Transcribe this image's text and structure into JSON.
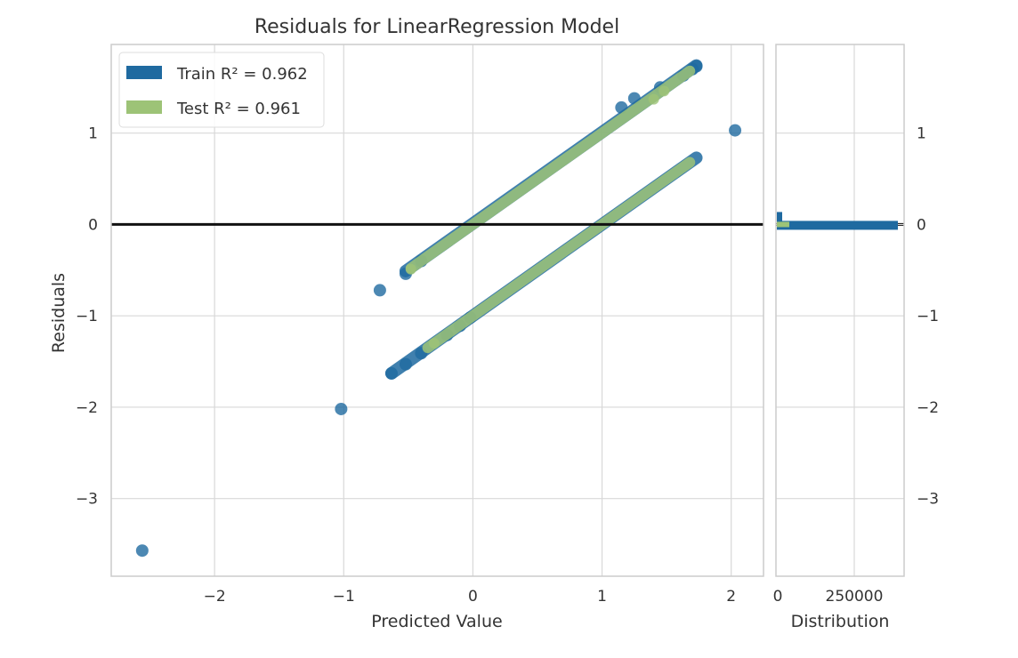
{
  "chart_data": {
    "type": "scatter",
    "title": "Residuals for LinearRegression Model",
    "xlabel": "Predicted Value",
    "ylabel": "Residuals",
    "xlim": [
      -2.8,
      2.25
    ],
    "ylim": [
      -3.85,
      1.97
    ],
    "x_ticks": [
      -2,
      -1,
      0,
      1,
      2
    ],
    "x_tick_labels": [
      "−2",
      "−1",
      "0",
      "1",
      "2"
    ],
    "y_ticks": [
      -3,
      -2,
      -1,
      0,
      1
    ],
    "y_tick_labels": [
      "−3",
      "−2",
      "−1",
      "0",
      "1"
    ],
    "grid": true,
    "legend_position": "top-left",
    "hline_y": 0,
    "colors": {
      "train": "#1f6aa0",
      "test": "#9dc377",
      "hline": "#111111",
      "grid": "#d8d8d8"
    },
    "series": [
      {
        "name": "Train",
        "r2_label": "Train R² = 0.962",
        "bands": [
          {
            "x_start": -0.52,
            "x_end": 1.73,
            "offset": 0.01
          },
          {
            "x_start": -0.63,
            "x_end": 1.73,
            "offset": -1.0
          }
        ],
        "points": [
          [
            -2.56,
            -3.57
          ],
          [
            -1.02,
            -2.02
          ],
          [
            2.03,
            1.03
          ],
          [
            -0.72,
            -0.72
          ],
          [
            -0.52,
            -0.54
          ],
          [
            -0.4,
            -0.4
          ],
          [
            -0.63,
            -1.63
          ],
          [
            -0.52,
            -1.53
          ],
          [
            -0.4,
            -1.41
          ],
          [
            -0.2,
            -1.21
          ],
          [
            -0.1,
            -1.11
          ],
          [
            -0.02,
            -1.02
          ],
          [
            1.15,
            1.28
          ],
          [
            1.25,
            1.38
          ],
          [
            1.45,
            1.5
          ],
          [
            1.63,
            1.63
          ],
          [
            1.7,
            1.7
          ],
          [
            1.73,
            1.73
          ]
        ]
      },
      {
        "name": "Test",
        "r2_label": "Test R² = 0.961",
        "bands": [
          {
            "x_start": -0.48,
            "x_end": 1.68,
            "offset": 0.0
          },
          {
            "x_start": -0.35,
            "x_end": 1.68,
            "offset": -1.0
          }
        ],
        "points": [
          [
            -0.48,
            -0.49
          ],
          [
            -0.3,
            -1.3
          ],
          [
            1.4,
            1.37
          ],
          [
            1.48,
            1.46
          ]
        ]
      }
    ],
    "side_panel": {
      "xlabel": "Distribution",
      "x_tick_labels": [
        "0",
        "250000"
      ],
      "y_tick_labels": [
        "1",
        "0",
        "−1",
        "−2",
        "−3"
      ]
    }
  }
}
